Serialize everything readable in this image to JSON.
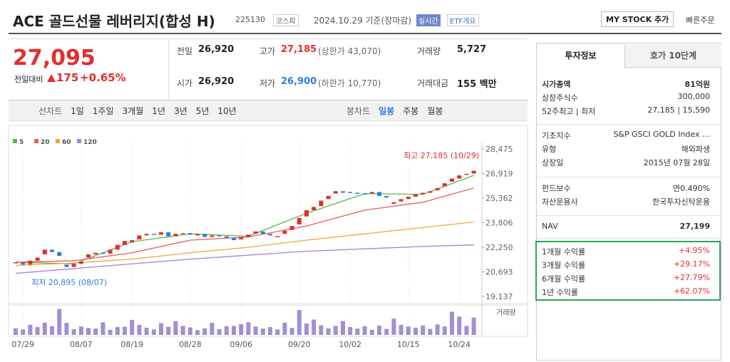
{
  "header": {
    "title": "ACE 골드선물 레버리지(합성 H)",
    "code": "225130",
    "market": "코스피",
    "date": "2024.10.29 기준(장마감)",
    "realtime": "실시간",
    "overview": "ETF개요",
    "mystock": "MY STOCK 추가",
    "quick_order": "빠른주문"
  },
  "price": {
    "current": "27,095",
    "change_label": "전일대비",
    "change": "175",
    "change_rate": "+0.65%"
  },
  "info": {
    "rows": [
      [
        [
          "전일",
          "26,920"
        ],
        [
          "고가",
          "27,185",
          "(상한가 43,070)"
        ],
        [
          "거래량",
          "5,727"
        ]
      ],
      [
        [
          "시가",
          "26,920"
        ],
        [
          "저가",
          "26,900",
          "(하한가 10,770)"
        ],
        [
          "거래대금",
          "155 백만"
        ]
      ]
    ]
  },
  "tabs": {
    "line_label": "선차트",
    "line_periods": [
      "1일",
      "1주일",
      "3개월",
      "1년",
      "3년",
      "5년",
      "10년"
    ],
    "candle_label": "봉차트",
    "candle_periods": [
      "일봉",
      "주봉",
      "월봉"
    ]
  },
  "chart": {
    "type": "candlestick",
    "ylim": [
      19137,
      28475
    ],
    "yticks": [
      {
        "value": 28475,
        "label": "28,475"
      },
      {
        "value": 26919,
        "label": "26,919"
      },
      {
        "value": 25362,
        "label": "25,362"
      },
      {
        "value": 23806,
        "label": "23,806"
      },
      {
        "value": 22250,
        "label": "22,250"
      },
      {
        "value": 20693,
        "label": "20,693"
      },
      {
        "value": 19137,
        "label": "19,137"
      }
    ],
    "categories": [
      null,
      "07/29",
      null,
      null,
      null,
      null,
      null,
      null,
      null,
      "08/07",
      null,
      null,
      null,
      null,
      null,
      null,
      "08/19",
      null,
      null,
      null,
      null,
      null,
      null,
      null,
      "08/28",
      null,
      null,
      null,
      null,
      null,
      null,
      "09/06",
      null,
      null,
      null,
      null,
      null,
      null,
      null,
      "09/20",
      null,
      null,
      null,
      null,
      null,
      null,
      "10/02",
      null,
      null,
      null,
      null,
      null,
      null,
      null,
      "10/15",
      null,
      null,
      null,
      null,
      null,
      null,
      "10/24",
      null,
      null
    ],
    "up_color": "#e0302c",
    "down_color": "#2f7de1",
    "candles": [
      {
        "open": 21250,
        "close": 21300
      },
      {
        "open": 21300,
        "close": 21150
      },
      {
        "open": 21150,
        "close": 21400
      },
      {
        "open": 21400,
        "close": 21600
      },
      {
        "open": 21800,
        "close": 22100
      },
      {
        "open": 22100,
        "close": 21950
      },
      {
        "open": 21950,
        "close": 21700
      },
      {
        "open": 21150,
        "close": 21000
      },
      {
        "open": 21000,
        "close": 21200
      },
      {
        "open": 21200,
        "close": 21350
      },
      {
        "open": 21600,
        "close": 21800
      },
      {
        "open": 21800,
        "close": 21900
      },
      {
        "open": 21900,
        "close": 21850
      },
      {
        "open": 21850,
        "close": 22100
      },
      {
        "open": 22100,
        "close": 22400
      },
      {
        "open": 22400,
        "close": 22650
      },
      {
        "open": 22550,
        "close": 22700
      },
      {
        "open": 22750,
        "close": 23000
      },
      {
        "open": 23000,
        "close": 23100
      },
      {
        "open": 23100,
        "close": 23050
      },
      {
        "open": 23050,
        "close": 23200
      },
      {
        "open": 23200,
        "close": 22950
      },
      {
        "open": 22950,
        "close": 23100
      },
      {
        "open": 23100,
        "close": 23150
      },
      {
        "open": 23150,
        "close": 23050
      },
      {
        "open": 23000,
        "close": 23100
      },
      {
        "open": 23100,
        "close": 22900
      },
      {
        "open": 22900,
        "close": 23000
      },
      {
        "open": 23000,
        "close": 22950
      },
      {
        "open": 22950,
        "close": 22850
      },
      {
        "open": 22850,
        "close": 22700
      },
      {
        "open": 22750,
        "close": 22900
      },
      {
        "open": 22900,
        "close": 23050
      },
      {
        "open": 23100,
        "close": 23250
      },
      {
        "open": 23250,
        "close": 23100
      },
      {
        "open": 23100,
        "close": 23000
      },
      {
        "open": 22900,
        "close": 22950
      },
      {
        "open": 23100,
        "close": 23300
      },
      {
        "open": 23350,
        "close": 23600
      },
      {
        "open": 23700,
        "close": 24100
      },
      {
        "open": 24200,
        "close": 24600
      },
      {
        "open": 24600,
        "close": 24800
      },
      {
        "open": 24850,
        "close": 25200
      },
      {
        "open": 25300,
        "close": 25500
      },
      {
        "open": 25650,
        "close": 25800
      },
      {
        "open": 25800,
        "close": 25700
      },
      {
        "open": 25750,
        "close": 25700
      },
      {
        "open": 25700,
        "close": 25650
      },
      {
        "open": 25650,
        "close": 25600
      },
      {
        "open": 25650,
        "close": 25750
      },
      {
        "open": 25750,
        "close": 25500
      },
      {
        "open": 25500,
        "close": 25400
      },
      {
        "open": 25000,
        "close": 25100
      },
      {
        "open": 25150,
        "close": 25300
      },
      {
        "open": 25300,
        "close": 25450
      },
      {
        "open": 25450,
        "close": 25600
      },
      {
        "open": 25600,
        "close": 25700
      },
      {
        "open": 25700,
        "close": 25800
      },
      {
        "open": 25850,
        "close": 26000
      },
      {
        "open": 26100,
        "close": 26300
      },
      {
        "open": 26400,
        "close": 26600
      },
      {
        "open": 26600,
        "close": 26800
      },
      {
        "open": 26850,
        "close": 26900
      },
      {
        "open": 26920,
        "close": 27095
      }
    ],
    "ma": [
      {
        "name": "5",
        "color": "#58b847",
        "x": [
          0,
          8,
          16,
          24,
          32,
          40,
          48,
          56,
          63
        ],
        "values": [
          21300,
          21200,
          22600,
          23100,
          22950,
          24400,
          25650,
          25600,
          26800
        ]
      },
      {
        "name": "20",
        "color": "#e5605a",
        "x": [
          0,
          8,
          16,
          24,
          32,
          40,
          48,
          56,
          63
        ],
        "values": [
          21300,
          21400,
          21900,
          22700,
          22900,
          23600,
          24600,
          25100,
          26000
        ]
      },
      {
        "name": "60",
        "color": "#f0a43c",
        "x": [
          0,
          8,
          16,
          24,
          32,
          40,
          48,
          56,
          63
        ],
        "values": [
          21100,
          21250,
          21500,
          21900,
          22250,
          22700,
          23100,
          23500,
          23850
        ]
      },
      {
        "name": "120",
        "color": "#a97fd8",
        "x": [
          0,
          8,
          16,
          24,
          32,
          40,
          48,
          56,
          63
        ],
        "values": [
          20600,
          20900,
          21200,
          21500,
          21750,
          22000,
          22150,
          22300,
          22400
        ]
      }
    ],
    "high_label": "최고 27,185 (10/29)",
    "low_label": "최저 20,895 (08/07)",
    "volume_label": "거래량",
    "volume_color": "#a18fd2",
    "volume_ylim": [
      0,
      9000
    ],
    "volumes": [
      2200,
      1800,
      3400,
      2600,
      4100,
      2900,
      8600,
      4000,
      1900,
      2800,
      2300,
      2100,
      4200,
      1700,
      2600,
      2700,
      5000,
      3300,
      2400,
      1800,
      3900,
      2700,
      4600,
      3000,
      2500,
      1600,
      2200,
      4000,
      1900,
      2900,
      3000,
      3600,
      4200,
      2800,
      2100,
      2600,
      1800,
      4100,
      2300,
      8300,
      3800,
      5100,
      3200,
      2200,
      3000,
      4600,
      2600,
      2100,
      2900,
      1700,
      3100,
      2000,
      5400,
      3300,
      2800,
      2400,
      3100,
      2000,
      3500,
      2800,
      7700,
      6100,
      3000,
      5727
    ]
  },
  "panel": {
    "tabs": [
      "투자정보",
      "호가 10단계"
    ],
    "group1": [
      [
        "시가총액",
        "81억원"
      ],
      [
        "상장주식수",
        "300,000"
      ],
      [
        "52주최고 | 최저",
        "27,185 | 15,590"
      ]
    ],
    "group2": [
      [
        "기초지수",
        "S&P GSCI GOLD Index …"
      ],
      [
        "유형",
        "해외파생"
      ],
      [
        "상장일",
        "2015년 07월 28일"
      ]
    ],
    "group3": [
      [
        "펀드보수",
        "연0.490%"
      ],
      [
        "자산운용사",
        "한국투자신탁운용"
      ]
    ],
    "nav": [
      "NAV",
      "27,199"
    ],
    "returns": [
      [
        "1개월 수익률",
        "+4.95%"
      ],
      [
        "3개월 수익률",
        "+29.17%"
      ],
      [
        "6개월 수익률",
        "+27.79%"
      ],
      [
        "1년 수익률",
        "+62.07%"
      ]
    ]
  }
}
